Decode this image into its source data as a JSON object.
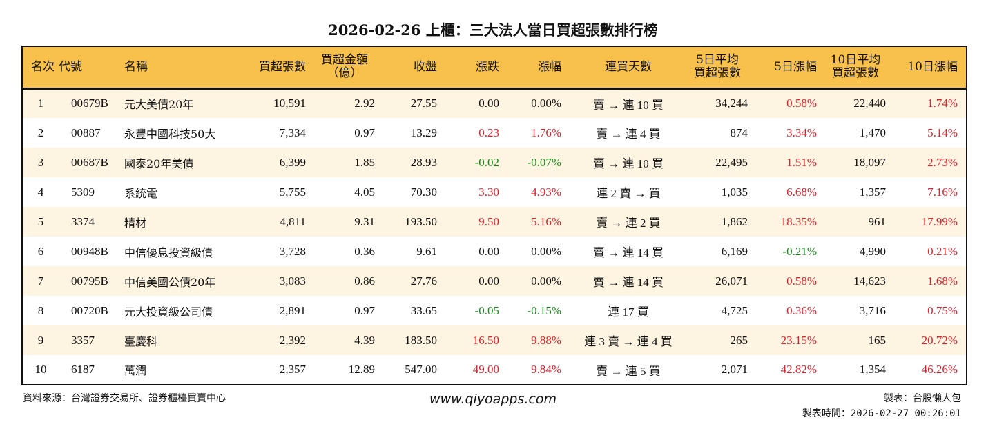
{
  "title": "2026-02-26 上櫃：三大法人當日買超張數排行榜",
  "colors": {
    "header_bg": "#f7c14b",
    "row_alt_bg": "#fdf4e1",
    "up": "#e0202a",
    "down": "#17891a"
  },
  "columns": [
    "名次",
    "代號",
    "名稱",
    "買超張數",
    "買超金額\n（億）",
    "收盤",
    "漲跌",
    "漲幅",
    "連買天數",
    "5日平均\n買超張數",
    "5日漲幅",
    "10日平均\n買超張數",
    "10日漲幅"
  ],
  "rows": [
    [
      "1",
      "00679B",
      "元大美債20年",
      "10,591",
      "2.92",
      "27.55",
      "0.00",
      "0.00%",
      "賣 → 連 10 買",
      "34,244",
      "0.58%",
      "22,440",
      "1.74%"
    ],
    [
      "2",
      "00887",
      "永豐中國科技50大",
      "7,334",
      "0.97",
      "13.29",
      "0.23",
      "1.76%",
      "賣 → 連 4 買",
      "874",
      "3.34%",
      "1,470",
      "5.14%"
    ],
    [
      "3",
      "00687B",
      "國泰20年美債",
      "6,399",
      "1.85",
      "28.93",
      "-0.02",
      "-0.07%",
      "賣 → 連 10 買",
      "22,495",
      "1.51%",
      "18,097",
      "2.73%"
    ],
    [
      "4",
      "5309",
      "系統電",
      "5,755",
      "4.05",
      "70.30",
      "3.30",
      "4.93%",
      "連 2 賣 → 買",
      "1,035",
      "6.68%",
      "1,357",
      "7.16%"
    ],
    [
      "5",
      "3374",
      "精材",
      "4,811",
      "9.31",
      "193.50",
      "9.50",
      "5.16%",
      "賣 → 連 2 買",
      "1,862",
      "18.35%",
      "961",
      "17.99%"
    ],
    [
      "6",
      "00948B",
      "中信優息投資級債",
      "3,728",
      "0.36",
      "9.61",
      "0.00",
      "0.00%",
      "賣 → 連 14 買",
      "6,169",
      "-0.21%",
      "4,990",
      "0.21%"
    ],
    [
      "7",
      "00795B",
      "中信美國公債20年",
      "3,083",
      "0.86",
      "27.76",
      "0.00",
      "0.00%",
      "賣 → 連 14 買",
      "26,071",
      "0.58%",
      "14,623",
      "1.68%"
    ],
    [
      "8",
      "00720B",
      "元大投資級公司債",
      "2,891",
      "0.97",
      "33.65",
      "-0.05",
      "-0.15%",
      "連 17 買",
      "4,725",
      "0.36%",
      "3,716",
      "0.75%"
    ],
    [
      "9",
      "3357",
      "臺慶科",
      "2,392",
      "4.39",
      "183.50",
      "16.50",
      "9.88%",
      "連 3 賣 → 連 4 買",
      "265",
      "23.15%",
      "165",
      "20.72%"
    ],
    [
      "10",
      "6187",
      "萬潤",
      "2,357",
      "12.89",
      "547.00",
      "49.00",
      "9.84%",
      "賣 → 連 5 買",
      "2,071",
      "42.82%",
      "1,354",
      "46.26%"
    ]
  ],
  "footer": {
    "source": "資料來源：台灣證券交易所、證券櫃檯買賣中心",
    "website": "www.qiyoapps.com",
    "maker": "製表：台股懶人包",
    "made_time": "製表時間：2026-02-27 00:26:01"
  }
}
